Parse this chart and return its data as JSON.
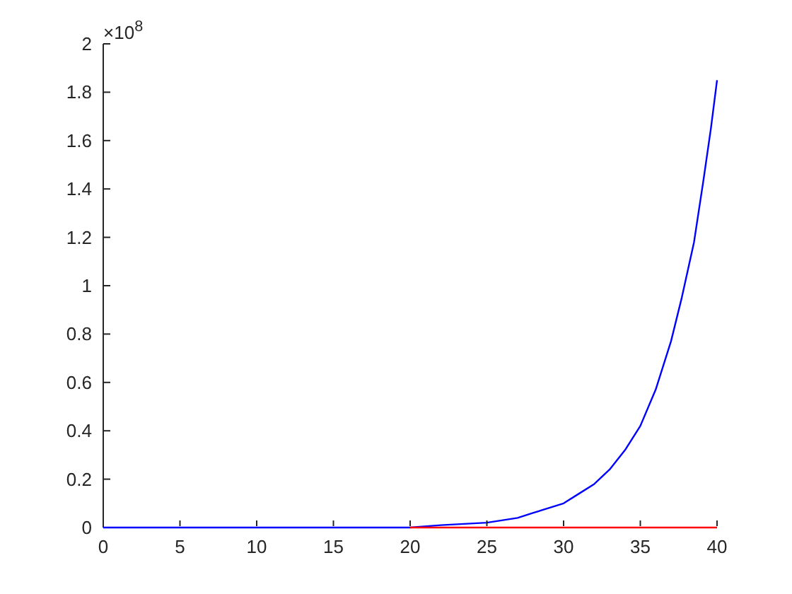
{
  "chart_data": {
    "type": "line",
    "annotations": [
      "×10$^{8}$"
    ],
    "xlim": [
      0,
      40
    ],
    "xticks": [
      0,
      5,
      10,
      15,
      20,
      25,
      30,
      35,
      40
    ],
    "ylim": [
      0,
      2
    ],
    "yticks": [
      0,
      0.2,
      0.4,
      0.6,
      0.8,
      1,
      1.2,
      1.4,
      1.6,
      1.8,
      2
    ],
    "marker": "none",
    "line_style": "solid",
    "series": [
      {
        "color": "#0000ff",
        "x": [
          0,
          5,
          10,
          15,
          20,
          22,
          25,
          27,
          28,
          29,
          30,
          31,
          32,
          33,
          34,
          35,
          36,
          37,
          37.7,
          38.5,
          39.1,
          39.6,
          40
        ],
        "values": [
          0,
          0,
          0,
          0,
          0,
          0.01,
          0.02,
          0.04,
          0.06,
          0.08,
          0.1,
          0.14,
          0.18,
          0.24,
          0.32,
          0.42,
          0.57,
          0.77,
          0.95,
          1.18,
          1.43,
          1.65,
          1.85
        ]
      },
      {
        "color": "#ff0000",
        "x": [
          20,
          40
        ],
        "values": [
          0,
          0
        ]
      }
    ]
  }
}
